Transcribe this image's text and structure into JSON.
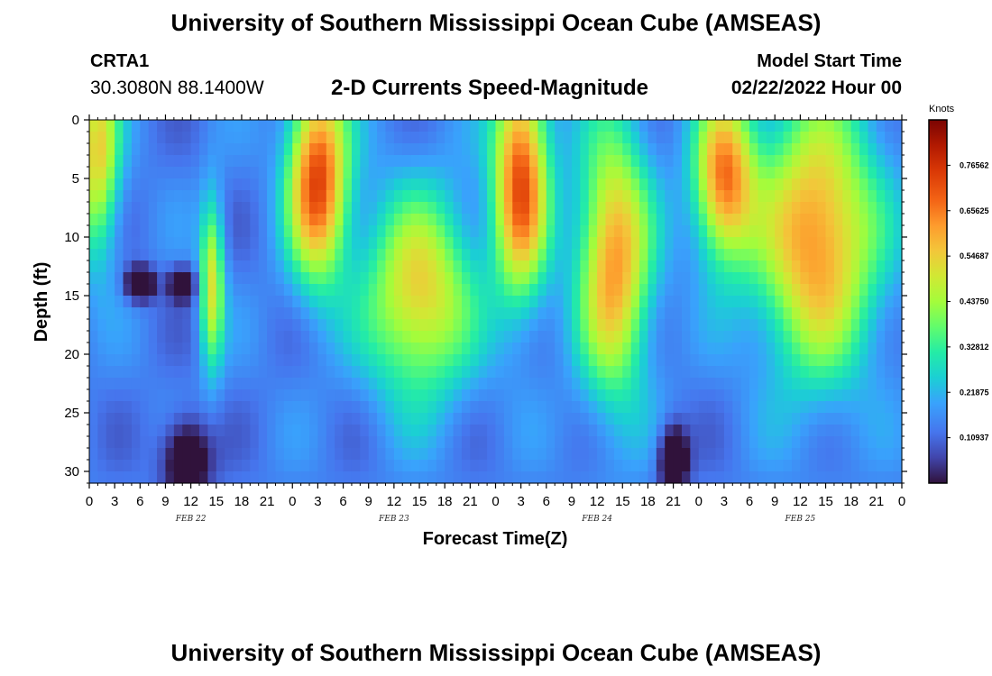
{
  "header": {
    "title": "University of Southern Mississippi Ocean Cube (AMSEAS)",
    "station_id": "CRTA1",
    "coords": "30.3080N  88.1400W",
    "chart_title": "2-D Currents Speed-Magnitude",
    "start_label": "Model Start Time",
    "start_value": "02/22/2022 Hour 00"
  },
  "footer": {
    "title": "University of Southern Mississippi Ocean Cube (AMSEAS)"
  },
  "chart_data": {
    "type": "heatmap",
    "xlabel": "Forecast Time(Z)",
    "ylabel": "Depth (ft)",
    "x_range_hours": [
      0,
      96
    ],
    "y_range_ft": [
      0,
      31
    ],
    "y_inverted": true,
    "x_tick_labels": [
      "0",
      "3",
      "6",
      "9",
      "12",
      "15",
      "18",
      "21",
      "0",
      "3",
      "6",
      "9",
      "12",
      "15",
      "18",
      "21",
      "0",
      "3",
      "6",
      "9",
      "12",
      "15",
      "18",
      "21",
      "0",
      "3",
      "6",
      "9",
      "12",
      "15",
      "18",
      "21",
      "0"
    ],
    "y_tick_labels": [
      "0",
      "5",
      "10",
      "15",
      "20",
      "25",
      "30"
    ],
    "y_tick_values": [
      0,
      5,
      10,
      15,
      20,
      25,
      30
    ],
    "date_labels": [
      {
        "text": "FEB 22",
        "hour": 12
      },
      {
        "text": "FEB 23",
        "hour": 36
      },
      {
        "text": "FEB 24",
        "hour": 60
      },
      {
        "text": "FEB 25",
        "hour": 84
      }
    ],
    "colorbar": {
      "unit": "Knots",
      "min": 0.0,
      "max": 0.875,
      "tick_labels": [
        "0.76562",
        "0.65625",
        "0.54687",
        "0.43750",
        "0.32812",
        "0.21875",
        "0.10937"
      ],
      "tick_values": [
        0.76562,
        0.65625,
        0.54687,
        0.4375,
        0.32812,
        0.21875,
        0.10937
      ]
    },
    "speed_features_knots": [
      {
        "hour": 1,
        "depth": 3,
        "value": 0.58,
        "sx": 1.8,
        "sy": 6
      },
      {
        "hour": 6,
        "depth": 14,
        "value": -0.2,
        "sx": 1.2,
        "sy": 1
      },
      {
        "hour": 11,
        "depth": 14,
        "value": -0.12,
        "sx": 1.2,
        "sy": 1
      },
      {
        "hour": 11.5,
        "depth": 29,
        "value": -0.15,
        "sx": 2,
        "sy": 2.5
      },
      {
        "hour": 14.5,
        "depth": 14,
        "value": 0.55,
        "sx": 1,
        "sy": 5
      },
      {
        "hour": 27,
        "depth": 5,
        "value": 0.8,
        "sx": 2.5,
        "sy": 6
      },
      {
        "hour": 39,
        "depth": 15,
        "value": 0.6,
        "sx": 4.5,
        "sy": 6
      },
      {
        "hour": 51,
        "depth": 5,
        "value": 0.78,
        "sx": 2.3,
        "sy": 7
      },
      {
        "hour": 62,
        "depth": 12,
        "value": 0.68,
        "sx": 3,
        "sy": 8
      },
      {
        "hour": 69,
        "depth": 29,
        "value": -0.2,
        "sx": 1.2,
        "sy": 2
      },
      {
        "hour": 75,
        "depth": 5,
        "value": 0.7,
        "sx": 2.5,
        "sy": 5
      },
      {
        "hour": 86,
        "depth": 10,
        "value": 0.7,
        "sx": 5,
        "sy": 8
      }
    ]
  }
}
